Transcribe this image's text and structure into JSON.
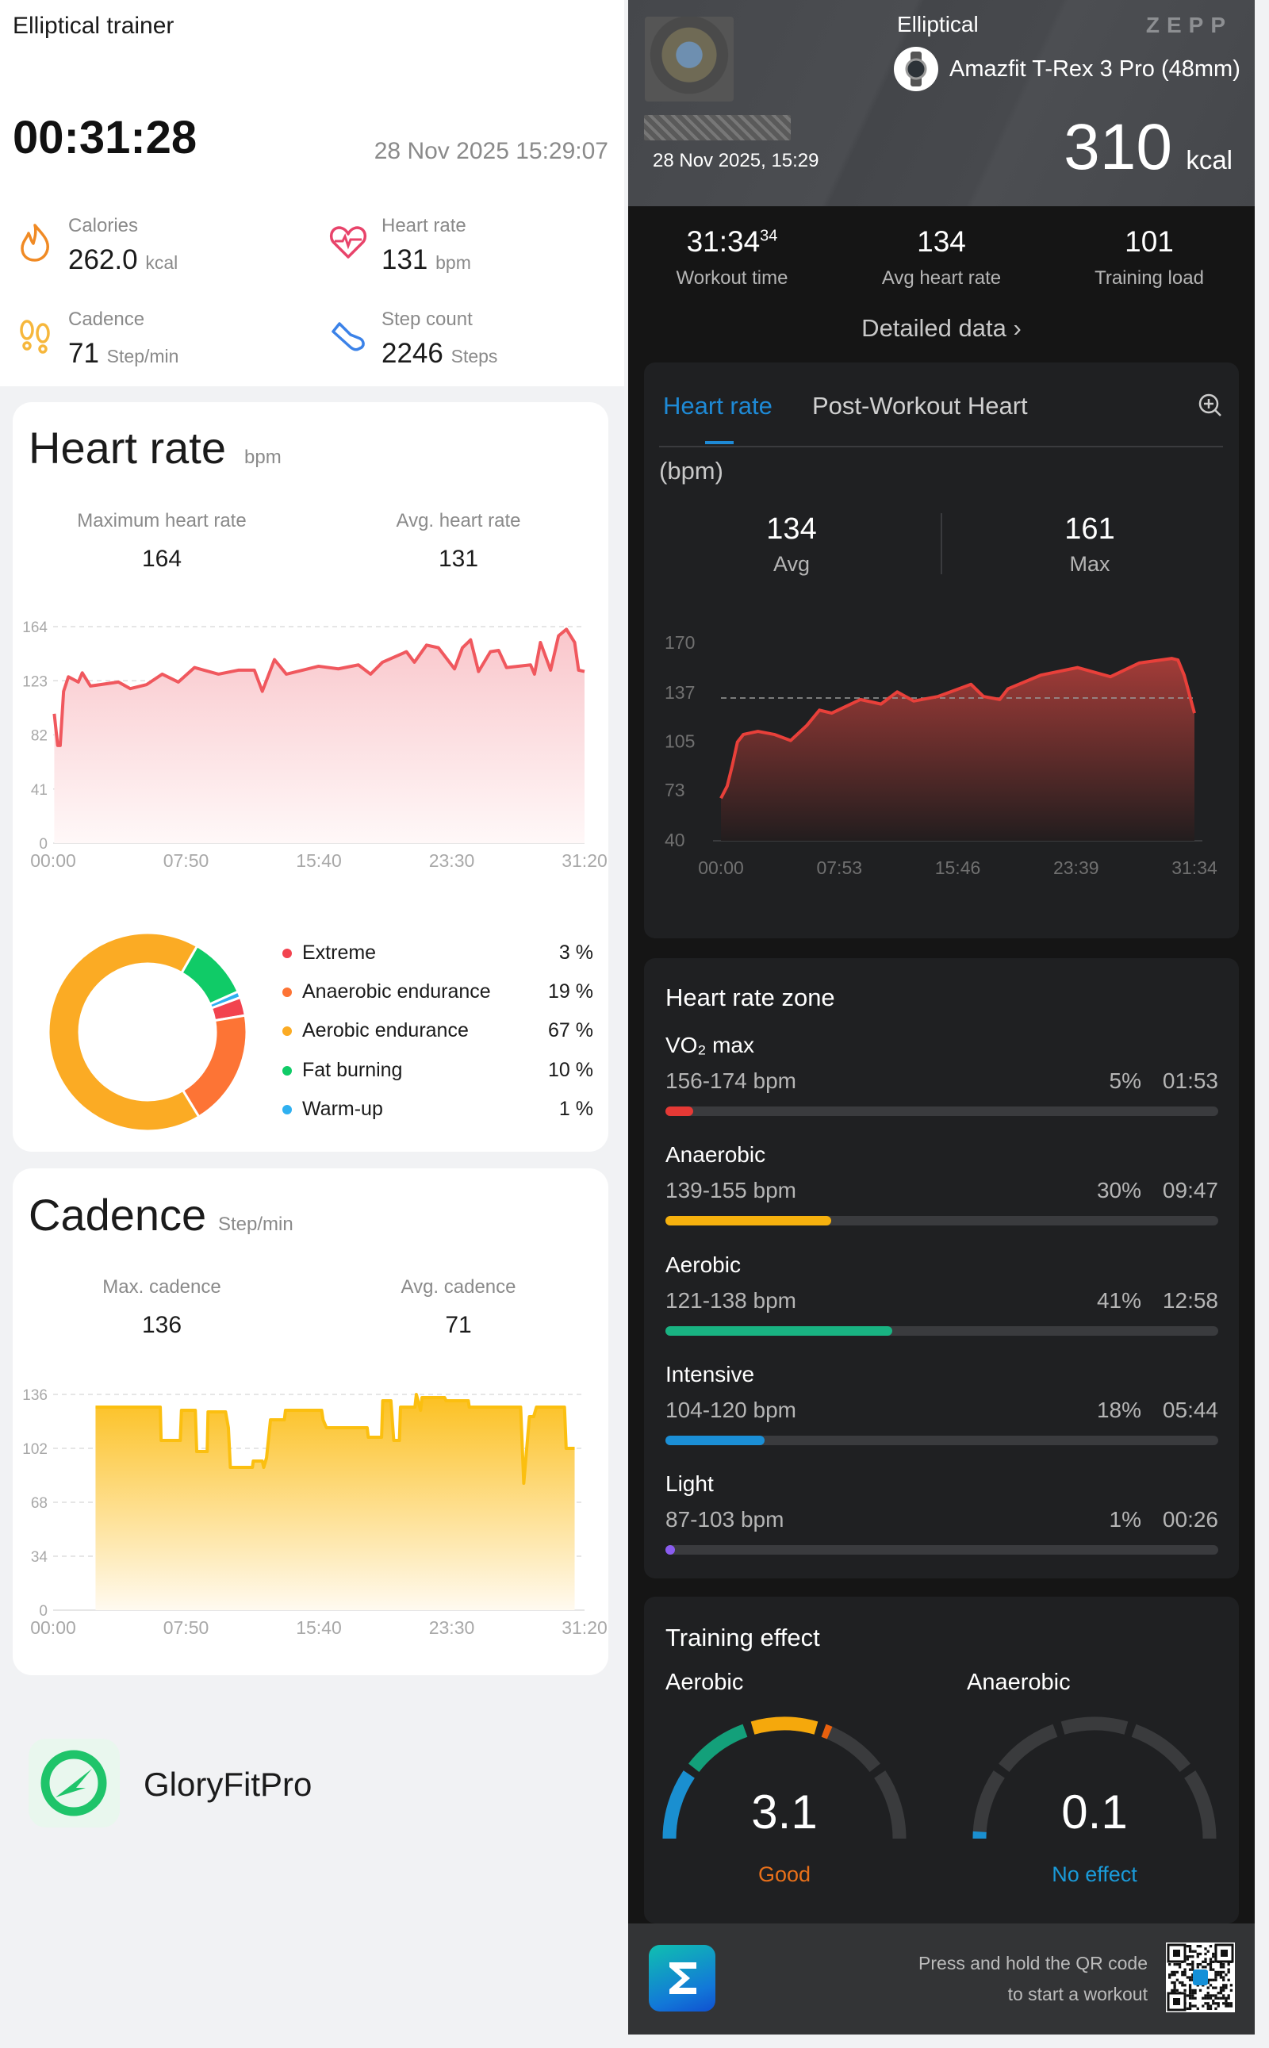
{
  "left": {
    "title": "Elliptical trainer",
    "duration": "00:31:28",
    "start_time": "28 Nov 2025 15:29:07",
    "stats": [
      {
        "label": "Calories",
        "value": "262.0",
        "unit": "kcal",
        "icon": "flame-icon",
        "color": "#f08a24"
      },
      {
        "label": "Heart rate",
        "value": "131",
        "unit": "bpm",
        "icon": "heart-pulse-icon",
        "color": "#e8436a"
      },
      {
        "label": "Cadence",
        "value": "71",
        "unit": "Step/min",
        "icon": "footprints-icon",
        "color": "#f6b73c"
      },
      {
        "label": "Step count",
        "value": "2246",
        "unit": "Steps",
        "icon": "shoe-icon",
        "color": "#3b82e8"
      }
    ],
    "heart_card": {
      "title": "Heart rate",
      "unit": "bpm",
      "max_label": "Maximum heart rate",
      "max_value": "164",
      "avg_label": "Avg. heart rate",
      "avg_value": "131",
      "zones": [
        {
          "label": "Extreme",
          "pct": "3 %",
          "value": 3,
          "color": "#f2434f"
        },
        {
          "label": "Anaerobic endurance",
          "pct": "19 %",
          "value": 19,
          "color": "#fd7435"
        },
        {
          "label": "Aerobic endurance",
          "pct": "67 %",
          "value": 67,
          "color": "#fbab24"
        },
        {
          "label": "Fat burning",
          "pct": "10 %",
          "value": 10,
          "color": "#10cb67"
        },
        {
          "label": "Warm-up",
          "pct": "1 %",
          "value": 1,
          "color": "#2fb0f0"
        }
      ]
    },
    "cadence_card": {
      "title": "Cadence",
      "unit": "Step/min",
      "max_label": "Max. cadence",
      "max_value": "136",
      "avg_label": "Avg. cadence",
      "avg_value": "71"
    },
    "brand": {
      "name": "GloryFitPro",
      "color": "#1fc46a"
    }
  },
  "right": {
    "sport": "Elliptical",
    "brand": "ZEPP",
    "device": "Amazfit T-Rex 3 Pro (48mm)",
    "date": "28 Nov 2025, 15:29",
    "calories": "310",
    "calories_unit": "kcal",
    "stats": [
      {
        "value": "31:34",
        "sup": "34",
        "label": "Workout time"
      },
      {
        "value": "134",
        "label": "Avg heart rate"
      },
      {
        "value": "101",
        "label": "Training load"
      }
    ],
    "detailed_link": "Detailed data",
    "hr_card": {
      "tabs": [
        {
          "label": "Heart rate",
          "active": true
        },
        {
          "label": "Post-Workout Heart",
          "active": false
        }
      ],
      "unit": "(bpm)",
      "avg_value": "134",
      "avg_label": "Avg",
      "max_value": "161",
      "max_label": "Max"
    },
    "zones_card": {
      "title": "Heart rate zone",
      "zones": [
        {
          "name": "VO₂ max",
          "range": "156-174 bpm",
          "pct_label": "5%",
          "pct": 5,
          "time": "01:53",
          "color": "#e53935"
        },
        {
          "name": "Anaerobic",
          "range": "139-155 bpm",
          "pct_label": "30%",
          "pct": 30,
          "time": "09:47",
          "color": "#f6b10e"
        },
        {
          "name": "Aerobic",
          "range": "121-138 bpm",
          "pct_label": "41%",
          "pct": 41,
          "time": "12:58",
          "color": "#19b382"
        },
        {
          "name": "Intensive",
          "range": "104-120 bpm",
          "pct_label": "18%",
          "pct": 18,
          "time": "05:44",
          "color": "#1b8fd6"
        },
        {
          "name": "Light",
          "range": "87-103 bpm",
          "pct_label": "1%",
          "pct": 1,
          "time": "00:26",
          "color": "#8a5cf0"
        }
      ]
    },
    "training_effect": {
      "title": "Training effect",
      "gauge_max": 5,
      "segment_colors": [
        "#1a8fd0",
        "#13a07a",
        "#f5a80c",
        "#e8600e",
        "#e53935"
      ],
      "aerobic": {
        "label": "Aerobic",
        "value": "3.1",
        "level": 3.1,
        "status": "Good",
        "status_color": "#e8701a"
      },
      "anaerobic": {
        "label": "Anaerobic",
        "value": "0.1",
        "level": 0.1,
        "status": "No effect",
        "status_color": "#1a9ad8"
      }
    },
    "footer": {
      "line1": "Press and hold the QR code",
      "line2": "to start a workout"
    }
  },
  "chart_data": [
    {
      "type": "area",
      "ylabel": "bpm",
      "ylim": [
        0,
        164
      ],
      "yticks": [
        "164",
        "123",
        "82",
        "41",
        "0"
      ],
      "xticks": [
        "00:00",
        "07:50",
        "15:40",
        "23:30",
        "31:20"
      ],
      "xlim": [
        "00:00",
        "31:20"
      ],
      "grid": true,
      "color": "#f0585e",
      "points": [
        [
          "00:04",
          98
        ],
        [
          "00:16",
          74
        ],
        [
          "00:25",
          74
        ],
        [
          "00:37",
          115
        ],
        [
          "00:54",
          126
        ],
        [
          "01:29",
          122
        ],
        [
          "01:43",
          129
        ],
        [
          "02:12",
          119
        ],
        [
          "03:51",
          122
        ],
        [
          "04:33",
          117
        ],
        [
          "05:30",
          120
        ],
        [
          "06:26",
          128
        ],
        [
          "07:23",
          122
        ],
        [
          "08:20",
          133
        ],
        [
          "09:45",
          128
        ],
        [
          "10:55",
          131
        ],
        [
          "11:52",
          131
        ],
        [
          "12:20",
          115
        ],
        [
          "13:03",
          139
        ],
        [
          "13:45",
          128
        ],
        [
          "15:39",
          134
        ],
        [
          "16:49",
          132
        ],
        [
          "18:00",
          135
        ],
        [
          "18:43",
          128
        ],
        [
          "19:25",
          137
        ],
        [
          "20:50",
          145
        ],
        [
          "21:18",
          137
        ],
        [
          "22:01",
          150
        ],
        [
          "22:43",
          148
        ],
        [
          "23:40",
          132
        ],
        [
          "24:08",
          148
        ],
        [
          "24:37",
          154
        ],
        [
          "25:05",
          130
        ],
        [
          "25:47",
          145
        ],
        [
          "26:16",
          146
        ],
        [
          "26:44",
          133
        ],
        [
          "28:09",
          135
        ],
        [
          "28:23",
          128
        ],
        [
          "28:44",
          152
        ],
        [
          "29:20",
          131
        ],
        [
          "29:48",
          157
        ],
        [
          "30:16",
          162
        ],
        [
          "30:45",
          152
        ],
        [
          "30:59",
          131
        ],
        [
          "31:20",
          130
        ]
      ]
    },
    {
      "type": "area",
      "ylabel": "Step/min",
      "ylim": [
        0,
        136
      ],
      "yticks": [
        "136",
        "102",
        "68",
        "34",
        "0"
      ],
      "xticks": [
        "00:00",
        "07:50",
        "15:40",
        "23:30",
        "31:20"
      ],
      "xlim": [
        "00:00",
        "31:20"
      ],
      "grid": true,
      "color": "#fbbf10",
      "points": [
        [
          "02:30",
          128
        ],
        [
          "06:19",
          128
        ],
        [
          "06:22",
          107
        ],
        [
          "07:30",
          107
        ],
        [
          "07:34",
          126
        ],
        [
          "08:23",
          126
        ],
        [
          "08:28",
          100
        ],
        [
          "09:05",
          100
        ],
        [
          "09:08",
          125
        ],
        [
          "10:10",
          125
        ],
        [
          "10:20",
          115
        ],
        [
          "10:27",
          90
        ],
        [
          "11:45",
          90
        ],
        [
          "11:48",
          94
        ],
        [
          "12:20",
          94
        ],
        [
          "12:25",
          90
        ],
        [
          "12:35",
          96
        ],
        [
          "12:49",
          120
        ],
        [
          "13:38",
          120
        ],
        [
          "13:42",
          126
        ],
        [
          "15:50",
          126
        ],
        [
          "15:55",
          120
        ],
        [
          "16:07",
          115
        ],
        [
          "18:31",
          115
        ],
        [
          "18:35",
          109
        ],
        [
          "19:22",
          109
        ],
        [
          "19:26",
          132
        ],
        [
          "19:55",
          132
        ],
        [
          "20:05",
          107
        ],
        [
          "20:25",
          107
        ],
        [
          "20:29",
          128
        ],
        [
          "21:20",
          128
        ],
        [
          "21:25",
          136
        ],
        [
          "21:40",
          126
        ],
        [
          "21:45",
          134
        ],
        [
          "23:05",
          134
        ],
        [
          "23:10",
          132
        ],
        [
          "24:29",
          132
        ],
        [
          "24:32",
          128
        ],
        [
          "27:34",
          128
        ],
        [
          "27:45",
          80
        ],
        [
          "28:05",
          122
        ],
        [
          "28:20",
          122
        ],
        [
          "28:30",
          128
        ],
        [
          "30:09",
          128
        ],
        [
          "30:15",
          102
        ],
        [
          "30:45",
          102
        ]
      ]
    },
    {
      "type": "area",
      "ylabel": "(bpm)",
      "ylim": [
        40,
        170
      ],
      "yticks": [
        "170",
        "137",
        "105",
        "73",
        "40"
      ],
      "xticks": [
        "00:00",
        "07:53",
        "15:46",
        "23:39",
        "31:34"
      ],
      "xlim": [
        "00:00",
        "31:34"
      ],
      "avg_line": 134,
      "color": "#e8403a",
      "points": [
        [
          "00:00",
          68
        ],
        [
          "00:25",
          76
        ],
        [
          "00:46",
          90
        ],
        [
          "01:06",
          105
        ],
        [
          "01:30",
          110
        ],
        [
          "02:28",
          112
        ],
        [
          "03:33",
          110
        ],
        [
          "04:39",
          106
        ],
        [
          "05:44",
          116
        ],
        [
          "06:34",
          126
        ],
        [
          "07:23",
          124
        ],
        [
          "09:18",
          133
        ],
        [
          "10:40",
          130
        ],
        [
          "11:45",
          138
        ],
        [
          "12:51",
          132
        ],
        [
          "14:29",
          135
        ],
        [
          "16:40",
          143
        ],
        [
          "17:30",
          135
        ],
        [
          "18:35",
          133
        ],
        [
          "19:08",
          140
        ],
        [
          "21:19",
          149
        ],
        [
          "23:47",
          154
        ],
        [
          "25:58",
          148
        ],
        [
          "27:53",
          157
        ],
        [
          "30:04",
          160
        ],
        [
          "30:28",
          159
        ],
        [
          "30:53",
          149
        ],
        [
          "31:34",
          124
        ]
      ]
    },
    {
      "type": "pie",
      "labels": [
        "Extreme",
        "Anaerobic endurance",
        "Aerobic endurance",
        "Fat burning",
        "Warm-up"
      ],
      "values": [
        3,
        19,
        67,
        10,
        1
      ]
    }
  ]
}
